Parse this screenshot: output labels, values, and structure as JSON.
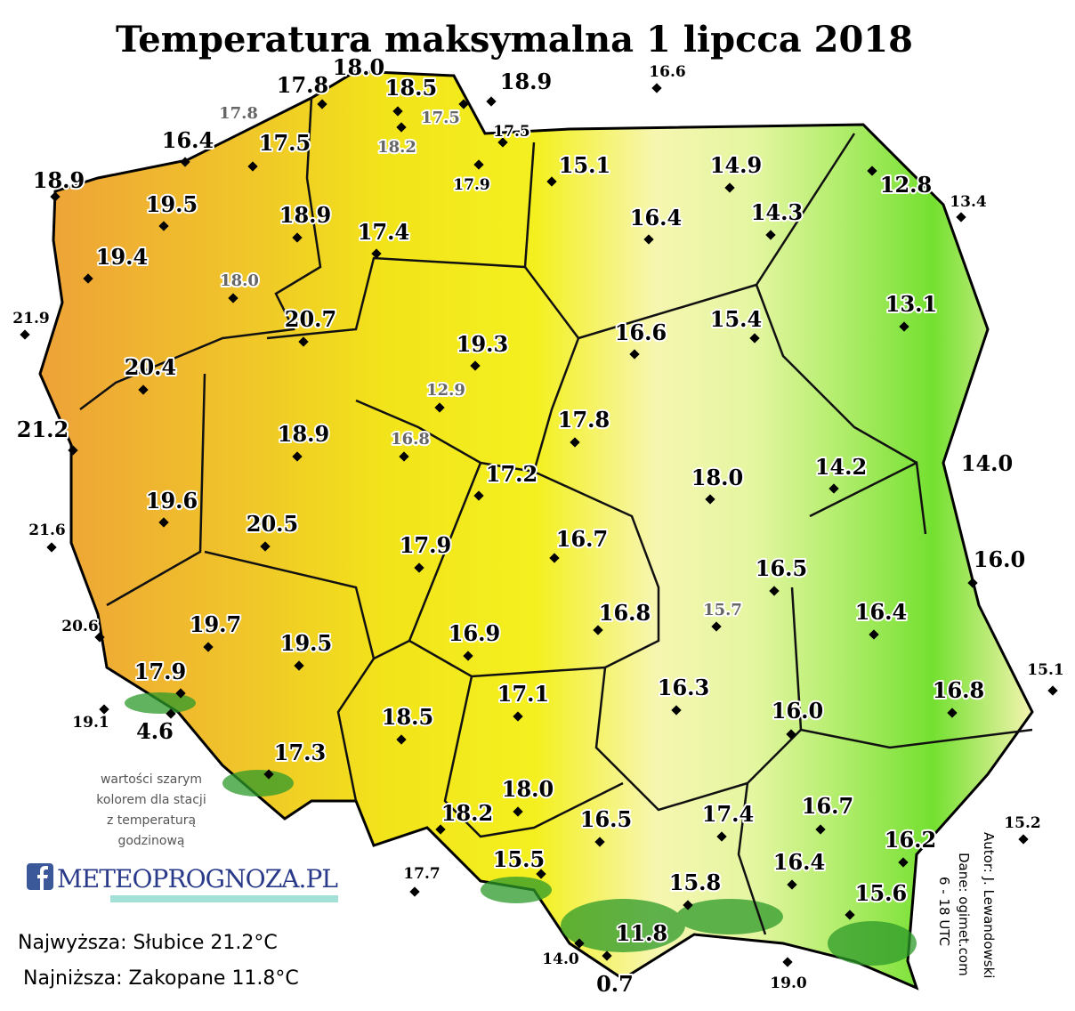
{
  "title": "Temperatura maksymalna 1 lipcca 2018",
  "stations": [
    "17.8",
    "18.0",
    "18.5",
    "18.9",
    "16.6",
    "17.8",
    "17.5",
    "18.2",
    "17.5",
    "16.4",
    "17.5",
    "17.9",
    "15.1",
    "14.9",
    "12.8",
    "13.4",
    "18.9",
    "19.5",
    "18.9",
    "17.4",
    "16.4",
    "14.3",
    "19.4",
    "18.0",
    "21.9",
    "20.7",
    "13.1",
    "19.3",
    "16.6",
    "15.4",
    "20.4",
    "12.9",
    "21.2",
    "18.9",
    "16.8",
    "17.8",
    "17.2",
    "18.0",
    "14.2",
    "14.0",
    "19.6",
    "21.6",
    "20.5",
    "17.9",
    "16.7",
    "16.0",
    "16.5",
    "15.7",
    "16.4",
    "16.8",
    "20.6",
    "19.7",
    "19.5",
    "16.9",
    "15.1",
    "17.1",
    "16.3",
    "16.0",
    "16.8",
    "17.9",
    "19.1",
    "4.6",
    "18.5",
    "17.3",
    "18.0",
    "18.2",
    "16.5",
    "17.4",
    "16.7",
    "16.2",
    "15.2",
    "17.7",
    "15.5",
    "15.8",
    "16.4",
    "15.6",
    "11.8",
    "14.0",
    "0.7",
    "19.0"
  ],
  "note": [
    "wartości szarym",
    "kolorem dla stacji",
    "z temperaturą",
    "godzinową"
  ],
  "logo": "METEOPROGNOZA.PL",
  "highest": "Najwyższa: Słubice 21.2°C",
  "lowest": "Najniższa: Zakopane 11.8°C",
  "credits": [
    "Autor: J. Lewandowski",
    "Dane: ogimet.com",
    "6 - 18 UTC"
  ]
}
